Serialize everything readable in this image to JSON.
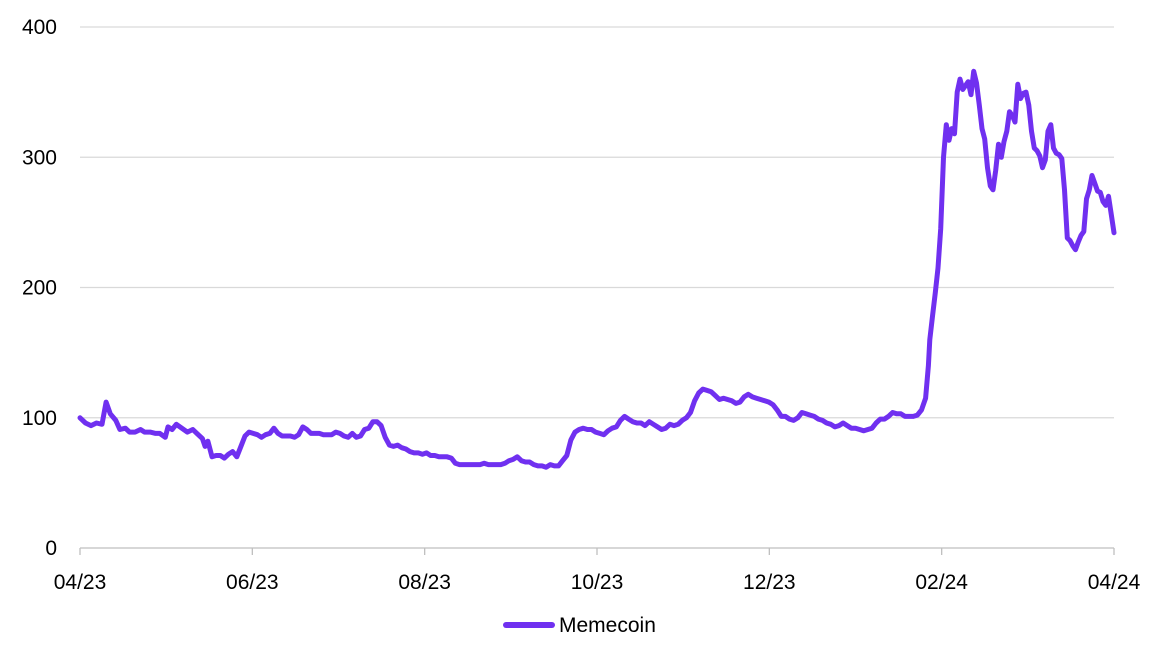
{
  "chart_data": {
    "type": "line",
    "title": "",
    "xlabel": "",
    "ylabel": "",
    "ylim": [
      0,
      400
    ],
    "yticks": [
      0,
      100,
      200,
      300,
      400
    ],
    "y_tick_labels": [
      "0",
      "100",
      "200",
      "300",
      "400"
    ],
    "x_tick_labels": [
      "04/23",
      "06/23",
      "08/23",
      "10/23",
      "12/23",
      "02/24",
      "04/24"
    ],
    "grid": "horizontal",
    "legend_position": "bottom-center",
    "colors": {
      "series": "#7030f0",
      "grid": "#d9d9d9",
      "axis": "#bfbfbf"
    },
    "series": [
      {
        "name": "Memecoin",
        "points": [
          [
            0,
            100
          ],
          [
            0.4,
            96
          ],
          [
            0.8,
            94
          ],
          [
            1.2,
            96
          ],
          [
            1.6,
            95
          ],
          [
            1.9,
            112
          ],
          [
            2.2,
            103
          ],
          [
            2.6,
            98
          ],
          [
            2.9,
            91
          ],
          [
            3.3,
            92
          ],
          [
            3.6,
            89
          ],
          [
            4,
            89
          ],
          [
            4.4,
            91
          ],
          [
            4.7,
            89
          ],
          [
            5.1,
            89
          ],
          [
            5.5,
            88
          ],
          [
            5.8,
            88
          ],
          [
            6.2,
            85
          ],
          [
            6.4,
            93
          ],
          [
            6.7,
            91
          ],
          [
            7,
            95
          ],
          [
            7.4,
            92
          ],
          [
            7.8,
            89
          ],
          [
            8.2,
            91
          ],
          [
            8.5,
            88
          ],
          [
            8.9,
            84
          ],
          [
            9.1,
            78
          ],
          [
            9.3,
            82
          ],
          [
            9.6,
            70
          ],
          [
            9.9,
            71
          ],
          [
            10.2,
            71
          ],
          [
            10.5,
            69
          ],
          [
            10.8,
            72
          ],
          [
            11.1,
            74
          ],
          [
            11.4,
            70
          ],
          [
            11.7,
            78
          ],
          [
            12,
            86
          ],
          [
            12.3,
            89
          ],
          [
            12.6,
            88
          ],
          [
            12.9,
            87
          ],
          [
            13.2,
            85
          ],
          [
            13.5,
            87
          ],
          [
            13.8,
            88
          ],
          [
            14.1,
            92
          ],
          [
            14.4,
            88
          ],
          [
            14.7,
            86
          ],
          [
            15,
            86
          ],
          [
            15.3,
            86
          ],
          [
            15.6,
            85
          ],
          [
            15.9,
            87
          ],
          [
            16.2,
            93
          ],
          [
            16.5,
            91
          ],
          [
            16.8,
            88
          ],
          [
            17.1,
            88
          ],
          [
            17.4,
            88
          ],
          [
            17.7,
            87
          ],
          [
            18,
            87
          ],
          [
            18.3,
            87
          ],
          [
            18.6,
            89
          ],
          [
            18.9,
            88
          ],
          [
            19.2,
            86
          ],
          [
            19.5,
            85
          ],
          [
            19.8,
            88
          ],
          [
            20.1,
            85
          ],
          [
            20.4,
            86
          ],
          [
            20.7,
            91
          ],
          [
            21,
            92
          ],
          [
            21.3,
            97
          ],
          [
            21.6,
            97
          ],
          [
            21.9,
            94
          ],
          [
            22.2,
            85
          ],
          [
            22.5,
            79
          ],
          [
            22.8,
            78
          ],
          [
            23.1,
            79
          ],
          [
            23.4,
            77
          ],
          [
            23.7,
            76
          ],
          [
            24,
            74
          ],
          [
            24.3,
            73
          ],
          [
            24.6,
            73
          ],
          [
            24.9,
            72
          ],
          [
            25.2,
            73
          ],
          [
            25.5,
            71
          ],
          [
            25.8,
            71
          ],
          [
            26.1,
            70
          ],
          [
            26.4,
            70
          ],
          [
            26.7,
            70
          ],
          [
            27,
            69
          ],
          [
            27.3,
            65
          ],
          [
            27.6,
            64
          ],
          [
            27.9,
            64
          ],
          [
            28.2,
            64
          ],
          [
            28.5,
            64
          ],
          [
            28.8,
            64
          ],
          [
            29.1,
            64
          ],
          [
            29.4,
            65
          ],
          [
            29.7,
            64
          ],
          [
            30,
            64
          ],
          [
            30.3,
            64
          ],
          [
            30.6,
            64
          ],
          [
            30.9,
            65
          ],
          [
            31.2,
            67
          ],
          [
            31.5,
            68
          ],
          [
            31.8,
            70
          ],
          [
            32.1,
            67
          ],
          [
            32.4,
            66
          ],
          [
            32.7,
            66
          ],
          [
            33,
            64
          ],
          [
            33.3,
            63
          ],
          [
            33.6,
            63
          ],
          [
            33.9,
            62
          ],
          [
            34.2,
            64
          ],
          [
            34.5,
            63
          ],
          [
            34.8,
            63
          ],
          [
            35.1,
            67
          ],
          [
            35.4,
            71
          ],
          [
            35.7,
            83
          ],
          [
            36,
            89
          ],
          [
            36.3,
            91
          ],
          [
            36.6,
            92
          ],
          [
            36.9,
            91
          ],
          [
            37.2,
            91
          ],
          [
            37.5,
            89
          ],
          [
            37.8,
            88
          ],
          [
            38.1,
            87
          ],
          [
            38.4,
            90
          ],
          [
            38.7,
            92
          ],
          [
            39,
            93
          ],
          [
            39.3,
            98
          ],
          [
            39.6,
            101
          ],
          [
            39.9,
            99
          ],
          [
            40.2,
            97
          ],
          [
            40.5,
            96
          ],
          [
            40.8,
            96
          ],
          [
            41.1,
            94
          ],
          [
            41.4,
            97
          ],
          [
            41.7,
            95
          ],
          [
            42,
            93
          ],
          [
            42.3,
            91
          ],
          [
            42.6,
            92
          ],
          [
            42.9,
            95
          ],
          [
            43.2,
            94
          ],
          [
            43.5,
            95
          ],
          [
            43.8,
            98
          ],
          [
            44.1,
            100
          ],
          [
            44.4,
            104
          ],
          [
            44.7,
            113
          ],
          [
            45,
            119
          ],
          [
            45.3,
            122
          ],
          [
            45.6,
            121
          ],
          [
            45.9,
            120
          ],
          [
            46.2,
            117
          ],
          [
            46.5,
            114
          ],
          [
            46.8,
            115
          ],
          [
            47.1,
            114
          ],
          [
            47.4,
            113
          ],
          [
            47.7,
            111
          ],
          [
            48,
            112
          ],
          [
            48.3,
            116
          ],
          [
            48.6,
            118
          ],
          [
            48.9,
            116
          ],
          [
            49.2,
            115
          ],
          [
            49.5,
            114
          ],
          [
            49.8,
            113
          ],
          [
            50.1,
            112
          ],
          [
            50.4,
            110
          ],
          [
            50.7,
            106
          ],
          [
            51,
            101
          ],
          [
            51.3,
            101
          ],
          [
            51.6,
            99
          ],
          [
            51.9,
            98
          ],
          [
            52.2,
            100
          ],
          [
            52.5,
            104
          ],
          [
            52.8,
            103
          ],
          [
            53.1,
            102
          ],
          [
            53.4,
            101
          ],
          [
            53.7,
            99
          ],
          [
            54,
            98
          ],
          [
            54.3,
            96
          ],
          [
            54.6,
            95
          ],
          [
            54.9,
            93
          ],
          [
            55.2,
            94
          ],
          [
            55.5,
            96
          ],
          [
            55.8,
            94
          ],
          [
            56.1,
            92
          ],
          [
            56.4,
            92
          ],
          [
            56.7,
            91
          ],
          [
            57,
            90
          ],
          [
            57.3,
            91
          ],
          [
            57.6,
            92
          ],
          [
            57.9,
            96
          ],
          [
            58.2,
            99
          ],
          [
            58.5,
            99
          ],
          [
            58.8,
            101
          ],
          [
            59.1,
            104
          ],
          [
            59.4,
            103
          ],
          [
            59.7,
            103
          ],
          [
            60,
            101
          ],
          [
            60.3,
            101
          ],
          [
            60.6,
            101
          ],
          [
            60.9,
            102
          ],
          [
            61.2,
            106
          ],
          [
            61.5,
            115
          ],
          [
            61.7,
            140
          ],
          [
            61.8,
            160
          ],
          [
            62,
            178
          ],
          [
            62.2,
            196
          ],
          [
            62.4,
            215
          ],
          [
            62.6,
            245
          ],
          [
            62.8,
            300
          ],
          [
            63,
            325
          ],
          [
            63.2,
            313
          ],
          [
            63.4,
            322
          ],
          [
            63.6,
            318
          ],
          [
            63.8,
            350
          ],
          [
            64,
            360
          ],
          [
            64.2,
            352
          ],
          [
            64.4,
            355
          ],
          [
            64.6,
            358
          ],
          [
            64.8,
            348
          ],
          [
            65,
            366
          ],
          [
            65.2,
            357
          ],
          [
            65.4,
            340
          ],
          [
            65.6,
            322
          ],
          [
            65.8,
            314
          ],
          [
            66,
            292
          ],
          [
            66.2,
            278
          ],
          [
            66.4,
            275
          ],
          [
            66.6,
            290
          ],
          [
            66.8,
            310
          ],
          [
            67,
            300
          ],
          [
            67.2,
            312
          ],
          [
            67.4,
            320
          ],
          [
            67.6,
            335
          ],
          [
            67.8,
            332
          ],
          [
            68,
            327
          ],
          [
            68.2,
            356
          ],
          [
            68.4,
            345
          ],
          [
            68.6,
            349
          ],
          [
            68.8,
            350
          ],
          [
            69,
            340
          ],
          [
            69.2,
            320
          ],
          [
            69.4,
            307
          ],
          [
            69.6,
            305
          ],
          [
            69.8,
            301
          ],
          [
            70,
            292
          ],
          [
            70.2,
            298
          ],
          [
            70.4,
            320
          ],
          [
            70.6,
            325
          ],
          [
            70.8,
            307
          ],
          [
            71,
            303
          ],
          [
            71.2,
            302
          ],
          [
            71.4,
            299
          ],
          [
            71.6,
            275
          ],
          [
            71.8,
            238
          ],
          [
            72,
            236
          ],
          [
            72.2,
            232
          ],
          [
            72.4,
            229
          ],
          [
            72.6,
            235
          ],
          [
            72.8,
            240
          ],
          [
            73,
            243
          ],
          [
            73.2,
            268
          ],
          [
            73.4,
            275
          ],
          [
            73.6,
            286
          ],
          [
            73.8,
            280
          ],
          [
            74,
            274
          ],
          [
            74.2,
            273
          ],
          [
            74.4,
            266
          ],
          [
            74.6,
            263
          ],
          [
            74.8,
            270
          ],
          [
            75,
            256
          ],
          [
            75.2,
            242
          ]
        ]
      }
    ]
  }
}
